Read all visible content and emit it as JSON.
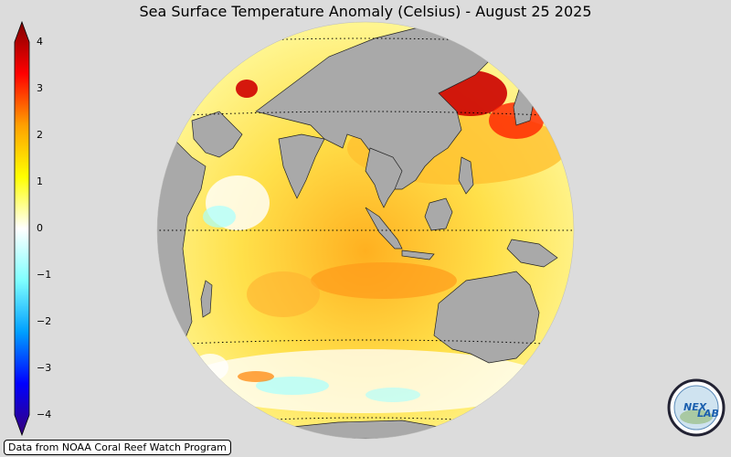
{
  "title": "Sea Surface Temperature Anomaly (Celsius) - August 25 2025",
  "colorbar": {
    "ticks": [
      "4",
      "3",
      "2",
      "1",
      "0",
      "−1",
      "−2",
      "−3",
      "−4"
    ],
    "colors": [
      "#380078",
      "#0000ff",
      "#00a0ff",
      "#80ffff",
      "#ffffff",
      "#ffff00",
      "#ffa000",
      "#ff0000",
      "#800000"
    ]
  },
  "map": {
    "land_color": "#a9a9a9",
    "background_color": "#dcdcdc"
  },
  "credit": "Data from NOAA Coral Reef Watch Program",
  "logo": {
    "text": "NEX",
    "text2": "LAB",
    "icon": "nexlab-logo-icon"
  }
}
